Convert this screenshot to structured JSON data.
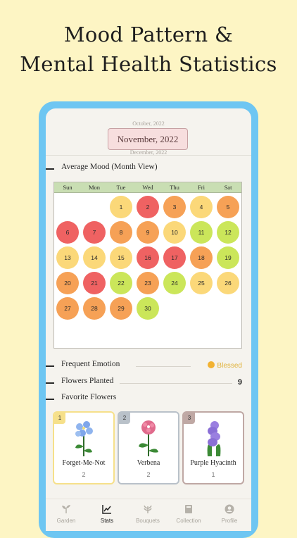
{
  "headline": {
    "line1": "Mood Pattern &",
    "line2": "Mental Health Statistics"
  },
  "months": {
    "prev": "October, 2022",
    "current": "November, 2022",
    "next": "December, 2022"
  },
  "sections": {
    "average_mood": "Average Mood (Month View)",
    "frequent_emotion": "Frequent Emotion",
    "flowers_planted": "Flowers Planted",
    "favorite_flowers": "Favorite Flowers"
  },
  "weekdays": [
    "Sun",
    "Mon",
    "Tue",
    "Wed",
    "Thu",
    "Fri",
    "Sat"
  ],
  "mood_colors": {
    "red": "#ef6262",
    "orange": "#f6a156",
    "yellow": "#fbd879",
    "lime": "#cbe65a"
  },
  "days": [
    {
      "n": "1",
      "c": "yellow"
    },
    {
      "n": "2",
      "c": "red"
    },
    {
      "n": "3",
      "c": "orange"
    },
    {
      "n": "4",
      "c": "yellow"
    },
    {
      "n": "5",
      "c": "orange"
    },
    {
      "n": "6",
      "c": "red"
    },
    {
      "n": "7",
      "c": "red"
    },
    {
      "n": "8",
      "c": "orange"
    },
    {
      "n": "9",
      "c": "orange"
    },
    {
      "n": "10",
      "c": "yellow"
    },
    {
      "n": "11",
      "c": "lime"
    },
    {
      "n": "12",
      "c": "lime"
    },
    {
      "n": "13",
      "c": "yellow"
    },
    {
      "n": "14",
      "c": "yellow"
    },
    {
      "n": "15",
      "c": "yellow"
    },
    {
      "n": "16",
      "c": "red"
    },
    {
      "n": "17",
      "c": "red"
    },
    {
      "n": "18",
      "c": "orange"
    },
    {
      "n": "19",
      "c": "lime"
    },
    {
      "n": "20",
      "c": "orange"
    },
    {
      "n": "21",
      "c": "red"
    },
    {
      "n": "22",
      "c": "lime"
    },
    {
      "n": "23",
      "c": "orange"
    },
    {
      "n": "24",
      "c": "lime"
    },
    {
      "n": "25",
      "c": "yellow"
    },
    {
      "n": "26",
      "c": "yellow"
    },
    {
      "n": "27",
      "c": "orange"
    },
    {
      "n": "28",
      "c": "orange"
    },
    {
      "n": "29",
      "c": "orange"
    },
    {
      "n": "30",
      "c": "lime"
    }
  ],
  "frequent_emotion": {
    "value": "Blessed",
    "icon": "smiling-face-icon"
  },
  "flowers_planted": {
    "value": "9"
  },
  "favorite_flowers": [
    {
      "rank": "1",
      "name": "Forget-Me-Not",
      "count": "2",
      "border": "#f6e08a",
      "rank_bg": "#f6e08a",
      "petal": "#8fb4ee",
      "icon": "forget-me-not-icon"
    },
    {
      "rank": "2",
      "name": "Verbena",
      "count": "2",
      "border": "#b9c1c9",
      "rank_bg": "#b9c1c9",
      "petal": "#e06a8c",
      "icon": "verbena-icon"
    },
    {
      "rank": "3",
      "name": "Purple Hyacinth",
      "count": "1",
      "border": "#bfa8a4",
      "rank_bg": "#bfa8a4",
      "petal": "#9a7fe0",
      "icon": "hyacinth-icon"
    }
  ],
  "tabs": [
    {
      "label": "Garden",
      "icon": "sprout-icon",
      "active": false
    },
    {
      "label": "Stats",
      "icon": "chart-icon",
      "active": true
    },
    {
      "label": "Bouquets",
      "icon": "bouquet-icon",
      "active": false
    },
    {
      "label": "Collection",
      "icon": "book-icon",
      "active": false
    },
    {
      "label": "Profile",
      "icon": "profile-icon",
      "active": false
    }
  ]
}
